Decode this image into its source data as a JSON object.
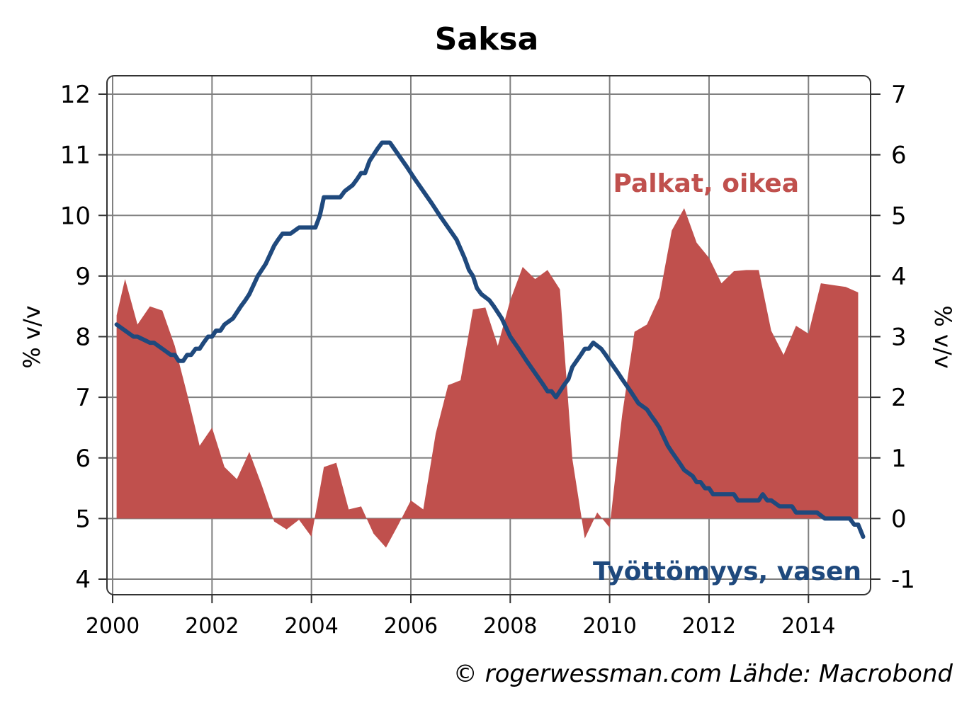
{
  "chart_data": {
    "type": "line+area",
    "title": "Saksa",
    "ylabel_left": "% v/v",
    "ylabel_right": "% v/v",
    "ylim_left": [
      4,
      12
    ],
    "ylim_right": [
      -1,
      7
    ],
    "yticks_left": [
      "4",
      "5",
      "6",
      "7",
      "8",
      "9",
      "10",
      "11",
      "12"
    ],
    "yticks_right": [
      "-1",
      "0",
      "1",
      "2",
      "3",
      "4",
      "5",
      "6",
      "7"
    ],
    "xlim": [
      2000,
      2015.25
    ],
    "xticks": [
      "2000",
      "2002",
      "2004",
      "2006",
      "2008",
      "2010",
      "2012",
      "2014"
    ],
    "grid": true,
    "series": [
      {
        "name": "Työttömyys, vasen",
        "axis": "left",
        "type": "line",
        "color": "#1f497d",
        "x": [
          2000.08,
          2000.25,
          2000.42,
          2000.5,
          2000.75,
          2000.83,
          2001.0,
          2001.17,
          2001.25,
          2001.33,
          2001.42,
          2001.5,
          2001.58,
          2001.67,
          2001.75,
          2001.83,
          2001.92,
          2002.0,
          2002.08,
          2002.17,
          2002.25,
          2002.42,
          2002.58,
          2002.67,
          2002.75,
          2002.92,
          2003.0,
          2003.08,
          2003.25,
          2003.33,
          2003.42,
          2003.58,
          2003.75,
          2003.92,
          2004.08,
          2004.17,
          2004.25,
          2004.42,
          2004.58,
          2004.67,
          2004.83,
          2004.92,
          2005.0,
          2005.08,
          2005.17,
          2005.25,
          2005.33,
          2005.42,
          2005.58,
          2005.75,
          2005.92,
          2006.08,
          2006.25,
          2006.42,
          2006.58,
          2006.75,
          2006.92,
          2007.08,
          2007.17,
          2007.25,
          2007.33,
          2007.42,
          2007.58,
          2007.67,
          2007.83,
          2008.0,
          2008.17,
          2008.33,
          2008.5,
          2008.67,
          2008.75,
          2008.83,
          2008.92,
          2009.08,
          2009.17,
          2009.25,
          2009.42,
          2009.5,
          2009.58,
          2009.67,
          2009.83,
          2009.92,
          2010.0,
          2010.17,
          2010.25,
          2010.42,
          2010.5,
          2010.58,
          2010.75,
          2010.83,
          2010.92,
          2011.0,
          2011.17,
          2011.25,
          2011.42,
          2011.5,
          2011.67,
          2011.75,
          2011.83,
          2011.92,
          2012.0,
          2012.08,
          2012.25,
          2012.42,
          2012.5,
          2012.58,
          2012.75,
          2012.92,
          2013.0,
          2013.08,
          2013.17,
          2013.25,
          2013.42,
          2013.5,
          2013.67,
          2013.75,
          2014.0,
          2014.17,
          2014.33,
          2014.5,
          2014.67,
          2014.83,
          2014.92,
          2015.0,
          2015.1
        ],
        "y": [
          8.2,
          8.1,
          8.0,
          8.0,
          7.9,
          7.9,
          7.8,
          7.7,
          7.7,
          7.6,
          7.6,
          7.7,
          7.7,
          7.8,
          7.8,
          7.9,
          8.0,
          8.0,
          8.1,
          8.1,
          8.2,
          8.3,
          8.5,
          8.6,
          8.7,
          9.0,
          9.1,
          9.2,
          9.5,
          9.6,
          9.7,
          9.7,
          9.8,
          9.8,
          9.8,
          10.0,
          10.3,
          10.3,
          10.3,
          10.4,
          10.5,
          10.6,
          10.7,
          10.7,
          10.9,
          11.0,
          11.1,
          11.2,
          11.2,
          11.0,
          10.8,
          10.6,
          10.4,
          10.2,
          10.0,
          9.8,
          9.6,
          9.3,
          9.1,
          9.0,
          8.8,
          8.7,
          8.6,
          8.5,
          8.3,
          8.0,
          7.8,
          7.6,
          7.4,
          7.2,
          7.1,
          7.1,
          7.0,
          7.2,
          7.3,
          7.5,
          7.7,
          7.8,
          7.8,
          7.9,
          7.8,
          7.7,
          7.6,
          7.4,
          7.3,
          7.1,
          7.0,
          6.9,
          6.8,
          6.7,
          6.6,
          6.5,
          6.2,
          6.1,
          5.9,
          5.8,
          5.7,
          5.6,
          5.6,
          5.5,
          5.5,
          5.4,
          5.4,
          5.4,
          5.4,
          5.3,
          5.3,
          5.3,
          5.3,
          5.4,
          5.3,
          5.3,
          5.2,
          5.2,
          5.2,
          5.1,
          5.1,
          5.1,
          5.0,
          5.0,
          5.0,
          5.0,
          4.9,
          4.9,
          4.7
        ]
      },
      {
        "name": "Palkat, oikea",
        "axis": "right",
        "type": "area",
        "color": "#c0504d",
        "x": [
          2000.08,
          2000.25,
          2000.5,
          2000.75,
          2001.0,
          2001.25,
          2001.5,
          2001.75,
          2002.0,
          2002.25,
          2002.5,
          2002.75,
          2003.0,
          2003.25,
          2003.5,
          2003.75,
          2004.0,
          2004.25,
          2004.5,
          2004.75,
          2005.0,
          2005.25,
          2005.5,
          2005.75,
          2006.0,
          2006.25,
          2006.5,
          2006.75,
          2007.0,
          2007.25,
          2007.5,
          2007.75,
          2008.0,
          2008.25,
          2008.5,
          2008.75,
          2009.0,
          2009.25,
          2009.5,
          2009.75,
          2010.0,
          2010.25,
          2010.5,
          2010.75,
          2011.0,
          2011.25,
          2011.5,
          2011.75,
          2012.0,
          2012.25,
          2012.5,
          2012.75,
          2013.0,
          2013.25,
          2013.5,
          2013.75,
          2014.0,
          2014.25,
          2014.5,
          2014.75,
          2015.0
        ],
        "y": [
          3.35,
          3.95,
          3.2,
          3.5,
          3.43,
          2.85,
          2.05,
          1.2,
          1.5,
          0.85,
          0.65,
          1.1,
          0.55,
          -0.05,
          -0.18,
          -0.02,
          -0.3,
          0.85,
          0.92,
          0.15,
          0.2,
          -0.25,
          -0.48,
          -0.1,
          0.3,
          0.15,
          1.4,
          2.2,
          2.28,
          3.45,
          3.48,
          2.85,
          3.6,
          4.15,
          3.95,
          4.1,
          3.78,
          0.98,
          -0.33,
          0.1,
          -0.15,
          1.7,
          3.08,
          3.2,
          3.65,
          4.75,
          5.12,
          4.55,
          4.3,
          3.88,
          4.08,
          4.1,
          4.1,
          3.1,
          2.7,
          3.18,
          3.05,
          3.88,
          3.85,
          3.82,
          3.73
        ]
      }
    ],
    "annotations": {
      "series_label_wages": "Palkat, oikea",
      "series_label_unemployment": "Työttömyys, vasen"
    },
    "source": "© rogerwessman.com Lähde: Macrobond"
  }
}
